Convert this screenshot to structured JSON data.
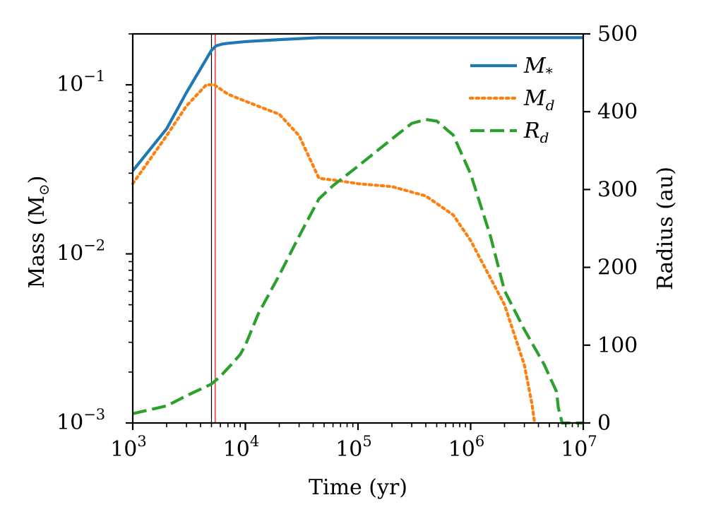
{
  "chart_data": {
    "type": "line",
    "title": "",
    "xlabel": "Time (yr)",
    "xscale": "log",
    "xlim": [
      1000,
      10000000
    ],
    "x_ticks": [
      {
        "value": 1000,
        "base": "10",
        "exp": "3"
      },
      {
        "value": 10000,
        "base": "10",
        "exp": "4"
      },
      {
        "value": 100000,
        "base": "10",
        "exp": "5"
      },
      {
        "value": 1000000,
        "base": "10",
        "exp": "6"
      },
      {
        "value": 10000000,
        "base": "10",
        "exp": "7"
      }
    ],
    "y_left": {
      "label": "Mass (M",
      "label_sub": "⊙",
      "label_tail": ")",
      "scale": "log",
      "lim": [
        0.001,
        0.2
      ],
      "ticks": [
        {
          "value": 0.1,
          "base": "10",
          "exp": "−1"
        },
        {
          "value": 0.01,
          "base": "10",
          "exp": "−2"
        },
        {
          "value": 0.001,
          "base": "10",
          "exp": "−3"
        }
      ]
    },
    "y_right": {
      "label": "Radius (au)",
      "scale": "linear",
      "lim": [
        0,
        500
      ],
      "ticks": [
        {
          "value": 0,
          "text": "0"
        },
        {
          "value": 100,
          "text": "100"
        },
        {
          "value": 200,
          "text": "200"
        },
        {
          "value": 300,
          "text": "300"
        },
        {
          "value": 400,
          "text": "400"
        },
        {
          "value": 500,
          "text": "500"
        }
      ]
    },
    "vlines": [
      {
        "x": 5000,
        "color": "#000000"
      },
      {
        "x": 5400,
        "color": "#e8000b"
      }
    ],
    "series": [
      {
        "name": "M",
        "sub": "*",
        "axis": "left",
        "color": "#1f77b4",
        "style": "solid",
        "x": [
          1000,
          2000,
          3000,
          5000,
          5500,
          6200,
          7000,
          10000,
          20000,
          45000,
          100000,
          1000000,
          10000000
        ],
        "y": [
          0.031,
          0.055,
          0.09,
          0.16,
          0.17,
          0.174,
          0.176,
          0.18,
          0.185,
          0.19,
          0.19,
          0.19,
          0.19
        ]
      },
      {
        "name": "M",
        "sub": "d",
        "axis": "left",
        "color": "#ff7f0e",
        "style": "dotted",
        "x": [
          1000,
          2000,
          3000,
          4500,
          5300,
          7000,
          10000,
          15000,
          20000,
          30000,
          45000,
          70000,
          100000,
          200000,
          400000,
          700000,
          1000000,
          2000000,
          3000000,
          3500000,
          3700000
        ],
        "y": [
          0.026,
          0.05,
          0.075,
          0.1,
          0.1,
          0.088,
          0.08,
          0.072,
          0.067,
          0.05,
          0.028,
          0.027,
          0.026,
          0.025,
          0.022,
          0.017,
          0.012,
          0.005,
          0.0022,
          0.0013,
          0.001
        ]
      },
      {
        "name": "R",
        "sub": "d",
        "axis": "right",
        "color": "#2ca02c",
        "style": "dashed",
        "x": [
          1000,
          2000,
          3000,
          5000,
          6000,
          7500,
          9000,
          10000,
          13000,
          20000,
          30000,
          45000,
          60000,
          100000,
          200000,
          300000,
          400000,
          500000,
          700000,
          1000000,
          1500000,
          2000000,
          3000000,
          4500000,
          5800000,
          6000000,
          6500000,
          10000000
        ],
        "y": [
          12,
          22,
          35,
          50,
          60,
          75,
          88,
          100,
          140,
          190,
          240,
          288,
          305,
          330,
          365,
          385,
          390,
          388,
          370,
          320,
          240,
          170,
          120,
          75,
          40,
          20,
          0,
          0
        ]
      }
    ]
  }
}
